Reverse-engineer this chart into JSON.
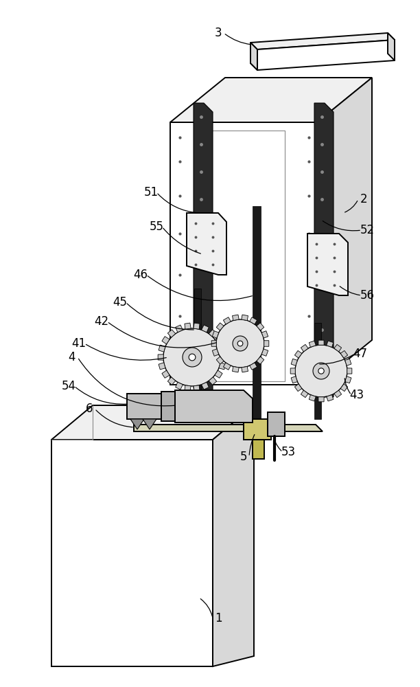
{
  "bg_color": "#ffffff",
  "fig_width": 6.12,
  "fig_height": 10.0,
  "dpi": 100
}
